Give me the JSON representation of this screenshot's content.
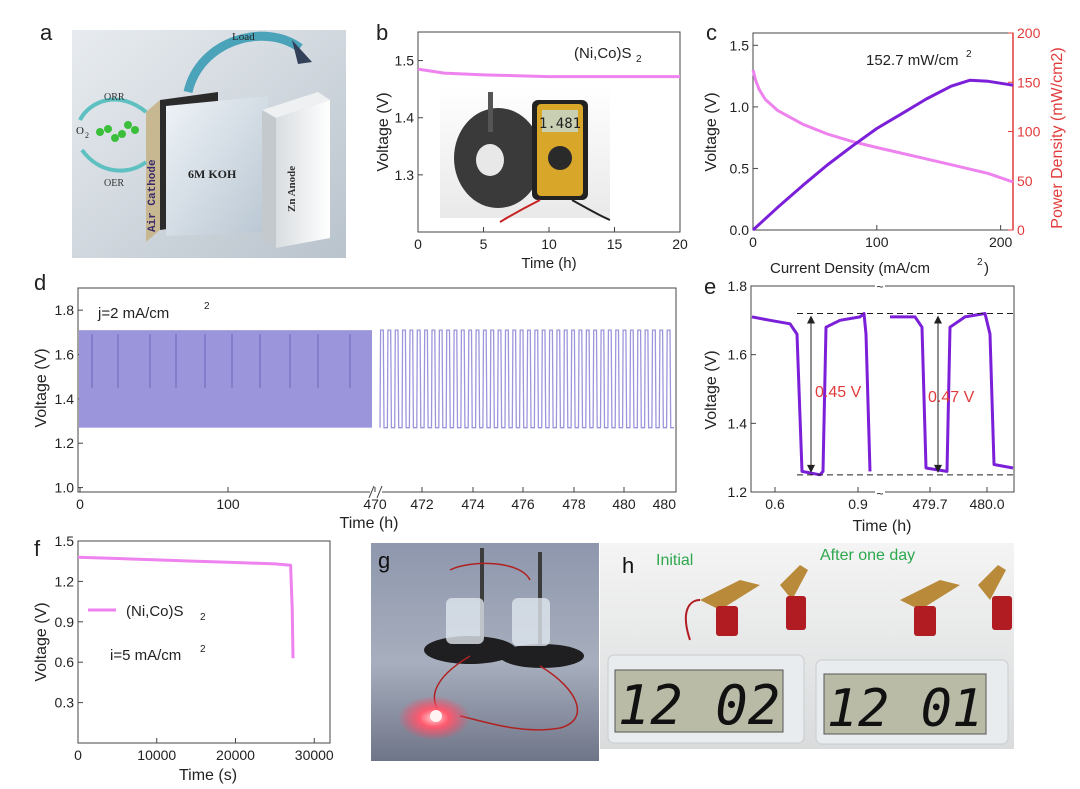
{
  "panel_labels": {
    "a": "a",
    "b": "b",
    "c": "c",
    "d": "d",
    "e": "e",
    "f": "f",
    "g": "g",
    "h": "h"
  },
  "colors": {
    "pink": "#ee82ee",
    "purple": "#7b20d8",
    "red": "#e23b3b",
    "lavender": "#9b96dc",
    "dark": "#222222",
    "green": "#2ea84e"
  },
  "panel_a": {
    "load": "Load",
    "orr": "ORR",
    "oer": "OER",
    "o2": "O",
    "o2_sub": "2",
    "cathode": "Air Cathode",
    "electrolyte": "6M KOH",
    "anode": "Zn Anode"
  },
  "panel_b": {
    "multimeter": "1.481"
  },
  "panel_h": {
    "initial": "Initial",
    "after": "After one day",
    "clock_initial": "12 02",
    "clock_after": "12 01"
  },
  "chart_data": [
    {
      "id": "b",
      "type": "line",
      "title": "",
      "annotation": "(Ni,Co)S",
      "annotation_sub": "2",
      "xlabel": "Time (h)",
      "ylabel": "Voltage (V)",
      "xlim": [
        0,
        20
      ],
      "ylim": [
        1.2,
        1.55
      ],
      "xticks": [
        0,
        5,
        10,
        15,
        20
      ],
      "yticks": [
        1.3,
        1.4,
        1.5
      ],
      "series": [
        {
          "name": "(Ni,Co)S2",
          "x": [
            0,
            2,
            5,
            10,
            15,
            20
          ],
          "y": [
            1.485,
            1.478,
            1.475,
            1.472,
            1.472,
            1.472
          ]
        }
      ]
    },
    {
      "id": "c",
      "type": "line",
      "annotation": "152.7 mW/cm",
      "annotation_sup": "2",
      "xlabel": "Current Density (mA/cm",
      "xlabel_sup": "2",
      "xlabel_end": ")",
      "ylabel": "Voltage (V)",
      "y2label": "Power Density (mW/cm",
      "y2label_sup": "2",
      "y2label_end": ")",
      "xlim": [
        0,
        210
      ],
      "ylim": [
        0,
        1.6
      ],
      "y2lim": [
        0,
        200
      ],
      "xticks": [
        0,
        100,
        200
      ],
      "yticks": [
        0.0,
        0.5,
        1.0,
        1.5
      ],
      "y2ticks": [
        0,
        50,
        100,
        150,
        200
      ],
      "series": [
        {
          "name": "Voltage",
          "axis": "left",
          "x": [
            0,
            2,
            5,
            10,
            20,
            40,
            60,
            80,
            100,
            130,
            160,
            190,
            210
          ],
          "y": [
            1.3,
            1.22,
            1.14,
            1.06,
            0.97,
            0.86,
            0.78,
            0.72,
            0.67,
            0.6,
            0.53,
            0.46,
            0.39
          ]
        },
        {
          "name": "Power Density",
          "axis": "right",
          "x": [
            0,
            20,
            40,
            60,
            80,
            100,
            120,
            140,
            160,
            175,
            190,
            210
          ],
          "y": [
            0,
            23,
            45,
            66,
            85,
            103,
            118,
            133,
            146,
            152,
            151,
            147
          ]
        }
      ]
    },
    {
      "id": "d",
      "type": "line",
      "annotation": "j=2 mA/cm",
      "annotation_sup": "2",
      "xlabel": "Time (h)",
      "ylabel": "Voltage (V)",
      "ylim": [
        0.98,
        1.9
      ],
      "yticks": [
        1.0,
        1.2,
        1.4,
        1.6,
        1.8
      ],
      "xticks_left": [
        "0",
        "100",
        "470"
      ],
      "xticks_right": [
        "472",
        "474",
        "476",
        "478",
        "480"
      ],
      "segments": [
        {
          "range": [
            0,
            470
          ],
          "type": "dense_band",
          "vmin": 1.27,
          "vmax": 1.71
        },
        {
          "range": [
            470,
            480
          ],
          "type": "cycles",
          "cycles": 40,
          "vmin": 1.27,
          "vmax": 1.71
        }
      ]
    },
    {
      "id": "e",
      "type": "line",
      "xlabel": "Time (h)",
      "ylabel": "Voltage (V)",
      "ylim": [
        1.2,
        1.8
      ],
      "yticks": [
        1.2,
        1.4,
        1.6,
        1.8
      ],
      "xticks_left": [
        "0.6",
        "0.9"
      ],
      "xticks_right": [
        "479.7",
        "480.0"
      ],
      "annotations": [
        "0.45 V",
        "0.47 V"
      ],
      "voltage_gap": [
        0.45,
        0.47
      ],
      "vmax": 1.72,
      "vmin": 1.25
    },
    {
      "id": "f",
      "type": "line",
      "xlabel": "Time (s)",
      "ylabel": "Voltage (V)",
      "xlim": [
        0,
        32000
      ],
      "ylim": [
        0.0,
        1.5
      ],
      "xticks": [
        0,
        10000,
        20000,
        30000
      ],
      "yticks": [
        0.3,
        0.6,
        0.9,
        1.2,
        1.5
      ],
      "legend": "(Ni,Co)S",
      "legend_sub": "2",
      "note": "i=5 mA/cm",
      "note_sup": "2",
      "series": [
        {
          "name": "(Ni,Co)S2",
          "x": [
            0,
            5000,
            10000,
            15000,
            20000,
            25000,
            27000,
            27200,
            27300
          ],
          "y": [
            1.38,
            1.37,
            1.36,
            1.35,
            1.34,
            1.33,
            1.32,
            1.0,
            0.63
          ]
        }
      ]
    }
  ]
}
